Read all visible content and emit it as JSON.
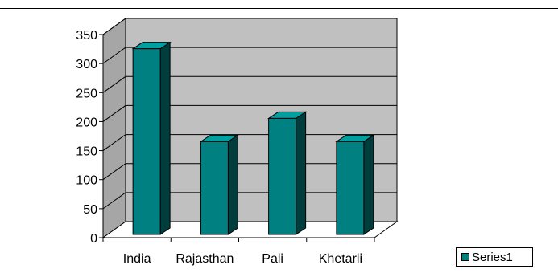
{
  "chart_data": {
    "type": "bar",
    "categories": [
      "India",
      "Rajasthan",
      "Pali",
      "Khetarli"
    ],
    "series": [
      {
        "name": "Series1",
        "values": [
          320,
          160,
          200,
          160
        ]
      }
    ],
    "ylim": [
      0,
      350
    ],
    "yticks": [
      0,
      50,
      100,
      150,
      200,
      250,
      300,
      350
    ],
    "grid": true,
    "legend": "bottom-right",
    "colors": {
      "bar_front": "#008080",
      "bar_side": "#003d3d",
      "bar_top": "#00a0a0",
      "wall": "#c0c0c0"
    }
  }
}
